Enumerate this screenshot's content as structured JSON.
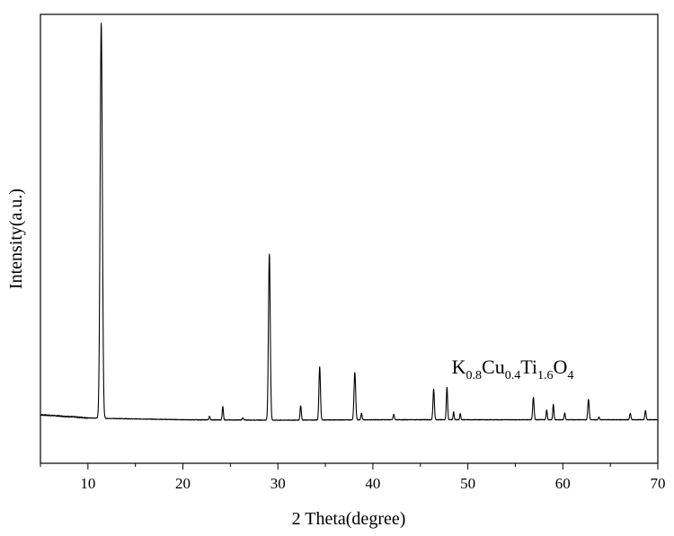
{
  "chart_data": {
    "type": "line",
    "title": "",
    "xlabel": "2 Theta(degree)",
    "ylabel": "Intensity(a.u.)",
    "xlim": [
      5,
      70
    ],
    "ylim": [
      0,
      1000
    ],
    "x_ticks": [
      10,
      20,
      30,
      40,
      50,
      60,
      70
    ],
    "x_tick_labels": [
      "10",
      "20",
      "30",
      "40",
      "50",
      "60",
      "70"
    ],
    "y_ticks": [],
    "grid": false,
    "legend": "none",
    "line_color": "#000000",
    "annotation": {
      "parts": [
        {
          "text": "K",
          "sub": false
        },
        {
          "text": "0.8",
          "sub": true
        },
        {
          "text": "Cu",
          "sub": false
        },
        {
          "text": "0.4",
          "sub": true
        },
        {
          "text": "Ti",
          "sub": false
        },
        {
          "text": "1.6",
          "sub": true
        },
        {
          "text": "O",
          "sub": false
        },
        {
          "text": "4",
          "sub": true
        }
      ],
      "x": 48.3,
      "y": 200
    },
    "baseline": [
      {
        "x": 5,
        "y": 108
      },
      {
        "x": 8,
        "y": 104
      },
      {
        "x": 10,
        "y": 101
      },
      {
        "x": 12,
        "y": 100
      },
      {
        "x": 20,
        "y": 97
      },
      {
        "x": 30,
        "y": 96
      },
      {
        "x": 40,
        "y": 97
      },
      {
        "x": 50,
        "y": 97
      },
      {
        "x": 60,
        "y": 97
      },
      {
        "x": 70,
        "y": 97
      }
    ],
    "peaks": [
      {
        "x": 11.4,
        "height": 880,
        "width": 0.35
      },
      {
        "x": 22.8,
        "height": 8,
        "width": 0.18
      },
      {
        "x": 24.2,
        "height": 30,
        "width": 0.18
      },
      {
        "x": 26.3,
        "height": 5,
        "width": 0.2
      },
      {
        "x": 29.1,
        "height": 370,
        "width": 0.28
      },
      {
        "x": 32.4,
        "height": 32,
        "width": 0.2
      },
      {
        "x": 34.4,
        "height": 118,
        "width": 0.24
      },
      {
        "x": 38.1,
        "height": 105,
        "width": 0.26
      },
      {
        "x": 38.8,
        "height": 15,
        "width": 0.18
      },
      {
        "x": 42.2,
        "height": 12,
        "width": 0.2
      },
      {
        "x": 46.4,
        "height": 68,
        "width": 0.22
      },
      {
        "x": 47.8,
        "height": 72,
        "width": 0.2
      },
      {
        "x": 48.5,
        "height": 18,
        "width": 0.16
      },
      {
        "x": 49.2,
        "height": 14,
        "width": 0.16
      },
      {
        "x": 56.9,
        "height": 50,
        "width": 0.22
      },
      {
        "x": 58.3,
        "height": 22,
        "width": 0.18
      },
      {
        "x": 59.0,
        "height": 34,
        "width": 0.18
      },
      {
        "x": 60.2,
        "height": 15,
        "width": 0.18
      },
      {
        "x": 62.7,
        "height": 45,
        "width": 0.22
      },
      {
        "x": 63.8,
        "height": 6,
        "width": 0.18
      },
      {
        "x": 67.1,
        "height": 14,
        "width": 0.2
      },
      {
        "x": 68.7,
        "height": 20,
        "width": 0.2
      }
    ]
  }
}
